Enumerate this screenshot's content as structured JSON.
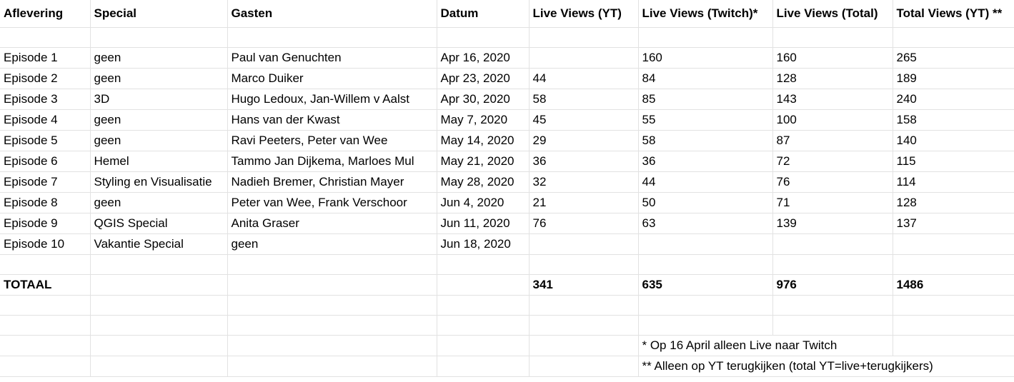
{
  "headers": [
    "Aflevering",
    "Special",
    "Gasten",
    "Datum",
    "Live Views (YT)",
    "Live Views (Twitch)*",
    "Live Views (Total)",
    "Total Views (YT) **"
  ],
  "rows": [
    [
      "Episode 1",
      "geen",
      "Paul van Genuchten",
      "Apr 16, 2020",
      "",
      "160",
      "160",
      "265"
    ],
    [
      "Episode 2",
      "geen",
      "Marco Duiker",
      "Apr 23, 2020",
      "44",
      "84",
      "128",
      "189"
    ],
    [
      "Episode 3",
      "3D",
      "Hugo Ledoux, Jan-Willem v Aalst",
      "Apr 30, 2020",
      "58",
      "85",
      "143",
      "240"
    ],
    [
      "Episode 4",
      "geen",
      "Hans van der Kwast",
      "May 7, 2020",
      "45",
      "55",
      "100",
      "158"
    ],
    [
      "Episode 5",
      "geen",
      "Ravi Peeters, Peter van Wee",
      "May 14, 2020",
      "29",
      "58",
      "87",
      "140"
    ],
    [
      "Episode 6",
      "Hemel",
      "Tammo Jan Dijkema, Marloes Mul",
      "May 21, 2020",
      "36",
      "36",
      "72",
      "115"
    ],
    [
      "Episode 7",
      "Styling en Visualisatie",
      "Nadieh Bremer, Christian Mayer",
      "May 28, 2020",
      "32",
      "44",
      "76",
      "114"
    ],
    [
      "Episode 8",
      "geen",
      "Peter van Wee, Frank Verschoor",
      "Jun 4, 2020",
      "21",
      "50",
      "71",
      "128"
    ],
    [
      "Episode 9",
      "QGIS Special",
      "Anita Graser",
      "Jun 11, 2020",
      "76",
      "63",
      "139",
      "137"
    ],
    [
      "Episode 10",
      "Vakantie Special",
      "geen",
      "Jun 18, 2020",
      "",
      "",
      "",
      ""
    ]
  ],
  "totals": [
    "TOTAAL",
    "",
    "",
    "",
    "341",
    "635",
    "976",
    "1486"
  ],
  "notes": [
    "* Op 16 April alleen Live naar Twitch",
    "** Alleen op YT terugkijken (total YT=live+terugkijkers)"
  ]
}
